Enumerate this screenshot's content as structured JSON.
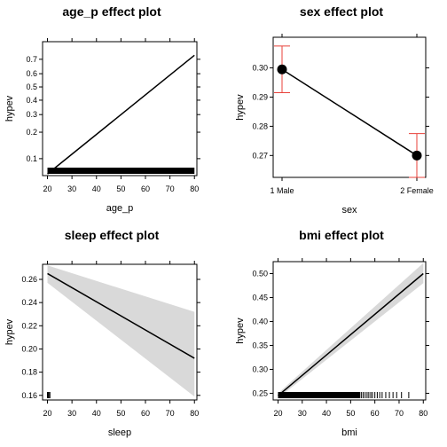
{
  "chart_data": [
    {
      "type": "line",
      "title": "age_p effect plot",
      "xlabel": "age_p",
      "ylabel": "hypev",
      "xlim": [
        18,
        81
      ],
      "ylim": [
        0.062,
        0.8
      ],
      "y_scale": "logit",
      "x_ticks": [
        20,
        30,
        40,
        50,
        60,
        70,
        80
      ],
      "y_ticks": [
        0.1,
        0.2,
        0.3,
        0.4,
        0.5,
        0.6,
        0.7
      ],
      "y_tick_labels": [
        "0.1",
        "0.2",
        "0.3",
        "0.4",
        "0.5",
        "0.6",
        "0.7"
      ],
      "x": [
        20,
        80
      ],
      "y": [
        0.065,
        0.725
      ],
      "rug": "dense rug of observations across 20–80"
    },
    {
      "type": "scatter",
      "title": "sex effect plot",
      "xlabel": "sex",
      "ylabel": "hypev",
      "categories": [
        "1 Male",
        "2 Female"
      ],
      "ylim": [
        0.2625,
        0.3105
      ],
      "y_ticks": [
        0.27,
        0.28,
        0.29,
        0.3
      ],
      "y_tick_labels": [
        "0.27",
        "0.28",
        "0.29",
        "0.30"
      ],
      "values": [
        0.2995,
        0.27
      ],
      "lower": [
        0.2915,
        0.2625
      ],
      "upper": [
        0.3075,
        0.2775
      ],
      "connected": true,
      "error_bar_color": "#e8413a"
    },
    {
      "type": "line",
      "title": "sleep effect plot",
      "xlabel": "sleep",
      "ylabel": "hypev",
      "xlim": [
        18,
        81
      ],
      "ylim": [
        0.156,
        0.273
      ],
      "x_ticks": [
        20,
        30,
        40,
        50,
        60,
        70,
        80
      ],
      "y_ticks": [
        0.16,
        0.18,
        0.2,
        0.22,
        0.24,
        0.26
      ],
      "y_tick_labels": [
        "0.16",
        "0.18",
        "0.20",
        "0.22",
        "0.24",
        "0.26"
      ],
      "x": [
        20,
        80
      ],
      "y": [
        0.265,
        0.192
      ],
      "band_lower": [
        0.257,
        0.159
      ],
      "band_upper": [
        0.272,
        0.232
      ],
      "band_color": "#d9d9d9",
      "rug": "observations at 20–21"
    },
    {
      "type": "line",
      "title": "bmi effect plot",
      "xlabel": "bmi",
      "ylabel": "hypev",
      "xlim": [
        18,
        81
      ],
      "ylim": [
        0.236,
        0.525
      ],
      "x_ticks": [
        20,
        30,
        40,
        50,
        60,
        70,
        80
      ],
      "y_ticks": [
        0.25,
        0.3,
        0.35,
        0.4,
        0.45,
        0.5
      ],
      "y_tick_labels": [
        "0.25",
        "0.30",
        "0.35",
        "0.40",
        "0.45",
        "0.50"
      ],
      "x": [
        20,
        80
      ],
      "y": [
        0.245,
        0.5
      ],
      "band_lower": [
        0.24,
        0.48
      ],
      "band_upper": [
        0.25,
        0.522
      ],
      "band_color": "#d9d9d9",
      "rug": "dense rug from 20 to ~55, sparse to ~75"
    }
  ]
}
